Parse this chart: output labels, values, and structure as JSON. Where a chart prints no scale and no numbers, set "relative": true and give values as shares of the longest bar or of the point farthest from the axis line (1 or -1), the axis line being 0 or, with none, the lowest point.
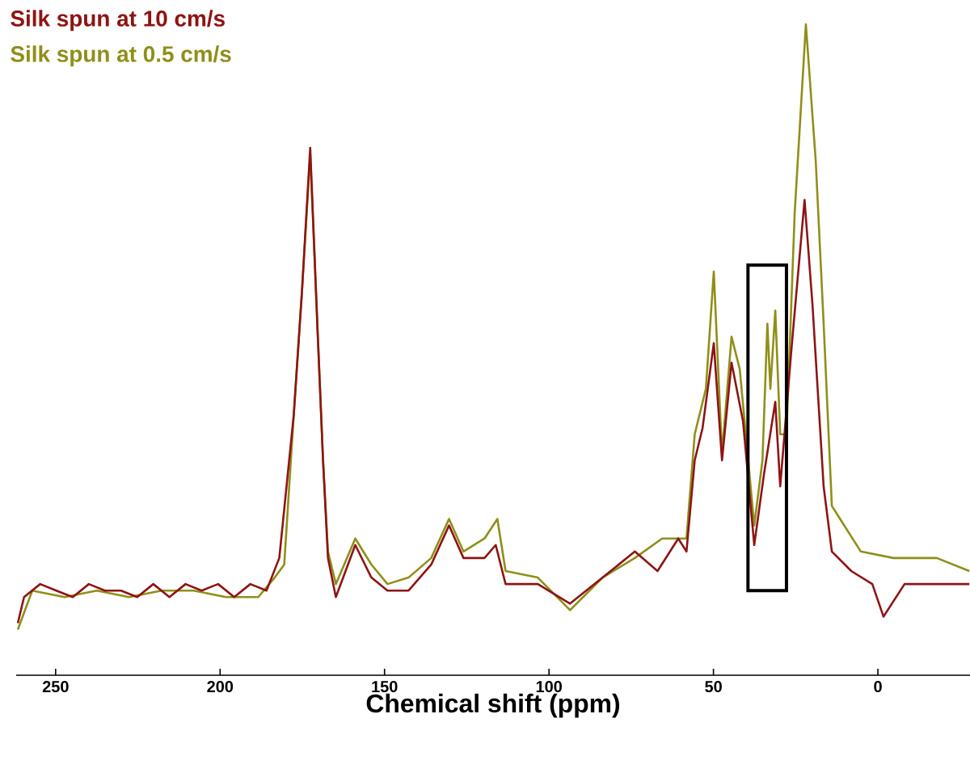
{
  "chart_data": {
    "type": "line",
    "relative": true,
    "xlabel": "Chemical shift (ppm)",
    "legend": "top left",
    "marker": "none",
    "line_style": "solid",
    "xlim": [
      262,
      -28
    ],
    "xticks": [
      250,
      200,
      150,
      100,
      50,
      0
    ],
    "series": [
      {
        "name": "Silk spun at 0.5 cm/s",
        "color": "#8f8f1a",
        "x": [
          261.5,
          257.1,
          247.3,
          237.5,
          227.7,
          217.8,
          208.0,
          198.2,
          188.4,
          183.4,
          180.5,
          177.6,
          175.1,
          172.6,
          170.2,
          168.7,
          167.2,
          164.8,
          158.9,
          154.0,
          149.1,
          142.7,
          135.8,
          130.4,
          126.0,
          119.6,
          115.7,
          113.2,
          103.4,
          93.6,
          83.7,
          73.9,
          65.6,
          58.2,
          55.7,
          52.3,
          49.9,
          47.4,
          44.5,
          42.0,
          37.6,
          35.1,
          33.6,
          32.7,
          31.2,
          29.7,
          27.8,
          25.3,
          21.9,
          18.9,
          16.5,
          14.0,
          11.5,
          5.2,
          -4.7,
          -17.9,
          -27.8
        ],
        "values": [
          0.07,
          0.13,
          0.12,
          0.13,
          0.12,
          0.13,
          0.13,
          0.12,
          0.12,
          0.15,
          0.17,
          0.4,
          0.59,
          0.8,
          0.51,
          0.33,
          0.19,
          0.14,
          0.21,
          0.17,
          0.14,
          0.15,
          0.18,
          0.24,
          0.19,
          0.21,
          0.24,
          0.16,
          0.15,
          0.1,
          0.15,
          0.18,
          0.21,
          0.21,
          0.37,
          0.44,
          0.62,
          0.34,
          0.52,
          0.47,
          0.23,
          0.33,
          0.54,
          0.44,
          0.56,
          0.37,
          0.37,
          0.71,
          1.0,
          0.79,
          0.54,
          0.26,
          0.24,
          0.19,
          0.18,
          0.18,
          0.16
        ]
      },
      {
        "name": "Silk spun at 10 cm/s",
        "color": "#8e1414",
        "x": [
          261.5,
          259.6,
          254.7,
          249.8,
          244.8,
          239.9,
          235.0,
          230.1,
          225.2,
          220.3,
          215.4,
          210.5,
          205.6,
          200.6,
          195.7,
          190.8,
          185.9,
          182.0,
          177.6,
          175.1,
          172.6,
          170.2,
          168.7,
          167.2,
          164.8,
          158.9,
          154.0,
          149.1,
          142.7,
          135.8,
          130.4,
          126.0,
          119.6,
          116.2,
          113.2,
          103.4,
          93.6,
          83.7,
          73.9,
          67.0,
          60.7,
          58.2,
          55.7,
          53.3,
          49.9,
          47.4,
          44.5,
          41.0,
          37.6,
          34.6,
          31.2,
          29.7,
          26.3,
          22.3,
          19.9,
          16.5,
          14.0,
          8.1,
          1.7,
          -1.7,
          -8.1,
          -17.9,
          -27.8
        ],
        "values": [
          0.08,
          0.12,
          0.14,
          0.13,
          0.12,
          0.14,
          0.13,
          0.13,
          0.12,
          0.14,
          0.12,
          0.14,
          0.13,
          0.14,
          0.12,
          0.14,
          0.13,
          0.18,
          0.4,
          0.59,
          0.81,
          0.51,
          0.33,
          0.18,
          0.12,
          0.2,
          0.15,
          0.13,
          0.13,
          0.17,
          0.23,
          0.18,
          0.18,
          0.2,
          0.14,
          0.14,
          0.11,
          0.15,
          0.19,
          0.16,
          0.21,
          0.19,
          0.33,
          0.38,
          0.51,
          0.33,
          0.48,
          0.39,
          0.2,
          0.31,
          0.42,
          0.29,
          0.5,
          0.73,
          0.57,
          0.29,
          0.19,
          0.16,
          0.14,
          0.09,
          0.14,
          0.14,
          0.14
        ]
      }
    ]
  }
}
